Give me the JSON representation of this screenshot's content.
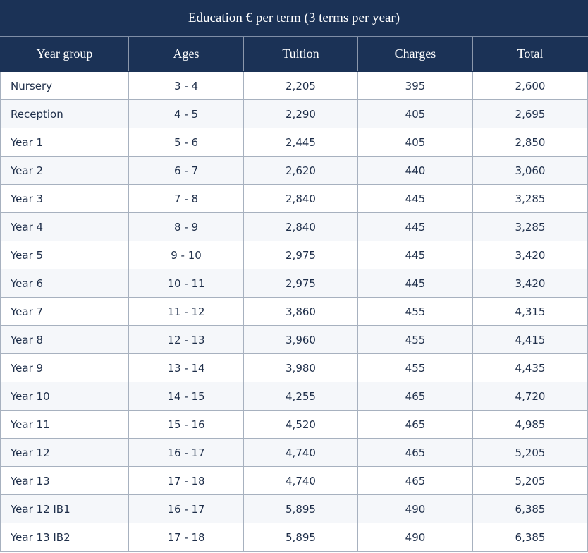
{
  "table": {
    "title": "Education € per term (3 terms per year)",
    "headers": [
      "Year group",
      "Ages",
      "Tuition",
      "Charges",
      "Total"
    ],
    "rows": [
      [
        "Nursery",
        "3 - 4",
        "2,205",
        "395",
        "2,600"
      ],
      [
        "Reception",
        "4 - 5",
        "2,290",
        "405",
        "2,695"
      ],
      [
        "Year 1",
        "5 - 6",
        "2,445",
        "405",
        "2,850"
      ],
      [
        "Year 2",
        "6 - 7",
        "2,620",
        "440",
        "3,060"
      ],
      [
        "Year 3",
        "7 - 8",
        "2,840",
        "445",
        "3,285"
      ],
      [
        "Year 4",
        "8 - 9",
        "2,840",
        "445",
        "3,285"
      ],
      [
        "Year 5",
        "9 - 10",
        "2,975",
        "445",
        "3,420"
      ],
      [
        "Year 6",
        "10 - 11",
        "2,975",
        "445",
        "3,420"
      ],
      [
        "Year 7",
        "11 - 12",
        "3,860",
        "455",
        "4,315"
      ],
      [
        "Year 8",
        "12 - 13",
        "3,960",
        "455",
        "4,415"
      ],
      [
        "Year 9",
        "13 - 14",
        "3,980",
        "455",
        "4,435"
      ],
      [
        "Year 10",
        "14 - 15",
        "4,255",
        "465",
        "4,720"
      ],
      [
        "Year 11",
        "15 - 16",
        "4,520",
        "465",
        "4,985"
      ],
      [
        "Year 12",
        "16 - 17",
        "4,740",
        "465",
        "5,205"
      ],
      [
        "Year 13",
        "17 - 18",
        "4,740",
        "465",
        "5,205"
      ],
      [
        "Year 12 IB1",
        "16 - 17",
        "5,895",
        "490",
        "6,385"
      ],
      [
        "Year 13 IB2",
        "17 - 18",
        "5,895",
        "490",
        "6,385"
      ]
    ]
  },
  "colors": {
    "header_bg": "#1b3256",
    "header_text": "#ffffff",
    "body_text": "#1f2f4a",
    "grid": "#a7b1bf"
  }
}
